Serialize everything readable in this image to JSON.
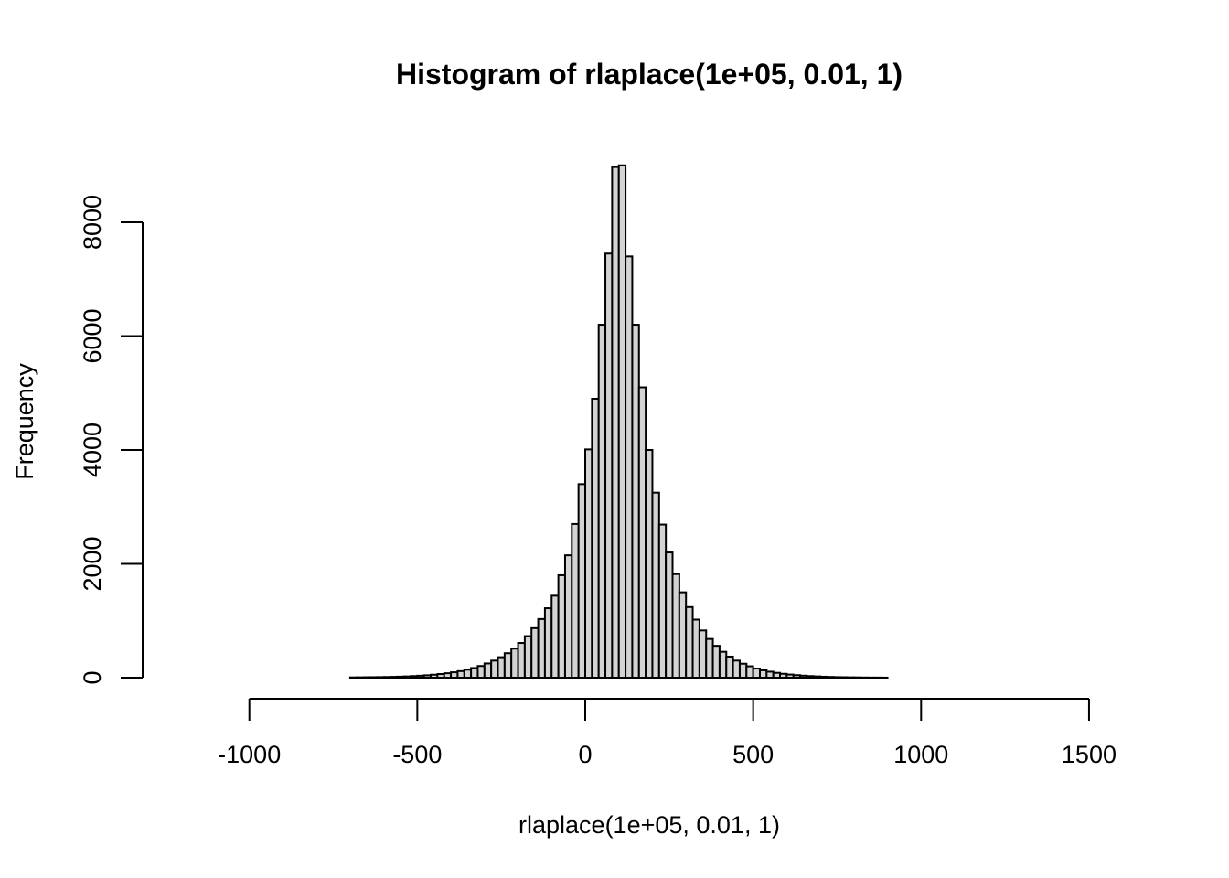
{
  "chart_data": {
    "type": "bar",
    "title": "Histogram of rlaplace(1e+05, 0.01, 1)",
    "xlabel": "rlaplace(1e+05, 0.01, 1)",
    "ylabel": "Frequency",
    "xlim": [
      -1200,
      1580
    ],
    "ylim": [
      0,
      9000
    ],
    "x_ticks": [
      -1000,
      -500,
      0,
      500,
      1000,
      1500
    ],
    "x_tick_labels": [
      "-1000",
      "-500",
      "0",
      "500",
      "1000",
      "1500"
    ],
    "y_ticks": [
      0,
      2000,
      4000,
      6000,
      8000
    ],
    "y_tick_labels": [
      "0",
      "2000",
      "4000",
      "6000",
      "8000"
    ],
    "bin_start": -1200,
    "bin_width": 20,
    "values": [
      0,
      0,
      0,
      0,
      0,
      0,
      0,
      0,
      0,
      0,
      0,
      0,
      0,
      0,
      0,
      0,
      0,
      0,
      0,
      0,
      0,
      0,
      0,
      0,
      0,
      5,
      6,
      8,
      9,
      10,
      12,
      15,
      18,
      22,
      28,
      34,
      42,
      52,
      64,
      78,
      95,
      115,
      140,
      170,
      205,
      250,
      300,
      360,
      430,
      510,
      610,
      730,
      870,
      1030,
      1220,
      1440,
      1800,
      2150,
      2700,
      3400,
      4010,
      4900,
      6200,
      7450,
      8970,
      9000,
      7400,
      6200,
      5100,
      4000,
      3250,
      2690,
      2200,
      1820,
      1500,
      1240,
      1020,
      830,
      680,
      560,
      455,
      370,
      300,
      245,
      200,
      160,
      130,
      105,
      85,
      68,
      55,
      44,
      35,
      28,
      22,
      17,
      13,
      10,
      8,
      6,
      5,
      3,
      2,
      2,
      1,
      0,
      0,
      0,
      0,
      0,
      0,
      0,
      0,
      0,
      0,
      0,
      0,
      0,
      0,
      0,
      0,
      0,
      0,
      0,
      0,
      0,
      0,
      0,
      0,
      0,
      0,
      0,
      0,
      0,
      0,
      0,
      0,
      0,
      0,
      0,
      0,
      0,
      0,
      0,
      0,
      0,
      0,
      0,
      0,
      0,
      0,
      0,
      0,
      0
    ],
    "bar_fill": "#d3d3d3",
    "bar_stroke": "#000000",
    "grid": false,
    "legend": "none"
  }
}
